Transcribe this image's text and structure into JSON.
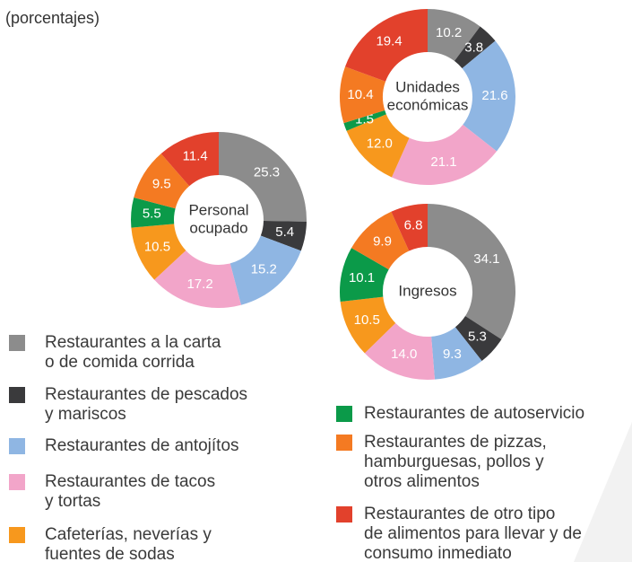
{
  "subtitle": "(porcentajes)",
  "legend": {
    "items": [
      {
        "lines": [
          "Restaurantes a la carta",
          "o de comida corrida"
        ],
        "color": "#8c8c8c"
      },
      {
        "lines": [
          "Restaurantes de pescados",
          "y mariscos"
        ],
        "color": "#3a3a3c"
      },
      {
        "lines": [
          "Restaurantes de antojítos"
        ],
        "color": "#8fb6e3"
      },
      {
        "lines": [
          "Restaurantes de tacos",
          "y tortas"
        ],
        "color": "#f2a5c9"
      },
      {
        "lines": [
          "Cafeterías, neverías y",
          "fuentes de sodas"
        ],
        "color": "#f7981d"
      },
      {
        "lines": [
          "Restaurantes de autoservicio"
        ],
        "color": "#0b9a49"
      },
      {
        "lines": [
          "Restaurantes de pizzas,",
          "hamburguesas, pollos y",
          "otros alimentos"
        ],
        "color": "#f47a22"
      },
      {
        "lines": [
          "Restaurantes de otro tipo",
          "de alimentos para llevar y de",
          "consumo inmediato"
        ],
        "color": "#e2412c"
      }
    ]
  },
  "chart_data": [
    {
      "type": "donut",
      "center_label": [
        "Personal",
        "ocupado"
      ],
      "values": [
        25.3,
        5.4,
        15.2,
        17.2,
        10.5,
        5.5,
        9.5,
        11.4
      ],
      "value_labels": [
        "25.3",
        "5.4",
        "15.2",
        "17.2",
        "10.5",
        "5.5",
        "9.5",
        "11.4"
      ]
    },
    {
      "type": "donut",
      "center_label": [
        "Unidades",
        "económicas"
      ],
      "values": [
        10.2,
        3.8,
        21.6,
        21.1,
        12.0,
        1.5,
        10.4,
        19.4
      ],
      "value_labels": [
        "10.2",
        "3.8",
        "21.6",
        "21.1",
        "12.0",
        "1.5",
        "10.4",
        "19.4"
      ]
    },
    {
      "type": "donut",
      "center_label": [
        "Ingresos"
      ],
      "values": [
        34.1,
        5.3,
        9.3,
        14.0,
        10.5,
        10.1,
        9.9,
        6.8
      ],
      "value_labels": [
        "34.1",
        "5.3",
        "9.3",
        "14.0",
        "10.5",
        "10.1",
        "9.9",
        "6.8"
      ]
    }
  ]
}
